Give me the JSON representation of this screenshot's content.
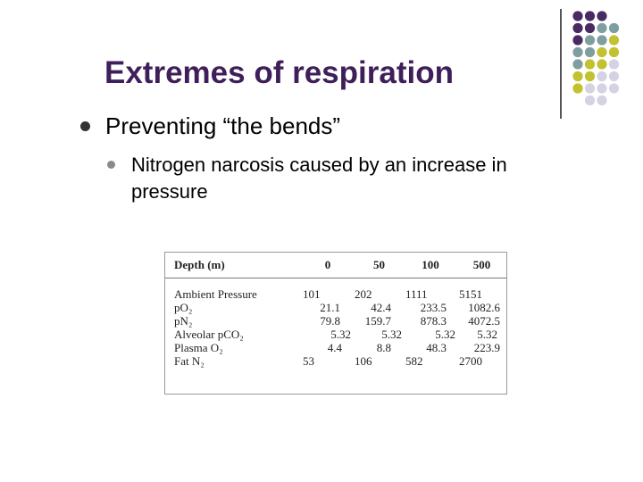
{
  "slide": {
    "title": "Extremes of respiration",
    "bullet1": "Preventing “the bends”",
    "bullet2": "Nitrogen narcosis caused by an increase in pressure"
  },
  "table": {
    "header": [
      "Depth (m)",
      "0",
      "50",
      "100",
      "500"
    ],
    "rows": [
      {
        "label": "Ambient Pressure",
        "values": [
          "101",
          "202",
          "1111",
          "5151"
        ]
      },
      {
        "label": "pO₂",
        "values": [
          "21.1",
          "42.4",
          "233.5",
          "1082.6"
        ]
      },
      {
        "label": "pN₂",
        "values": [
          "79.8",
          "159.7",
          "878.3",
          "4072.5"
        ]
      },
      {
        "label": "Alveolar pCO₂",
        "values": [
          "5.32",
          "5.32",
          "5.32",
          "5.32"
        ]
      },
      {
        "label": "Plasma O₂",
        "values": [
          "4.4",
          "8.8",
          "48.3",
          "223.9"
        ]
      },
      {
        "label": "Fat N₂",
        "values": [
          "53",
          "106",
          "582",
          "2700"
        ]
      }
    ]
  },
  "colors": {
    "purple": "#4a2a63",
    "teal": "#7f9ea0",
    "olive": "#c2c12f",
    "lavender": "#d5d3e3"
  }
}
